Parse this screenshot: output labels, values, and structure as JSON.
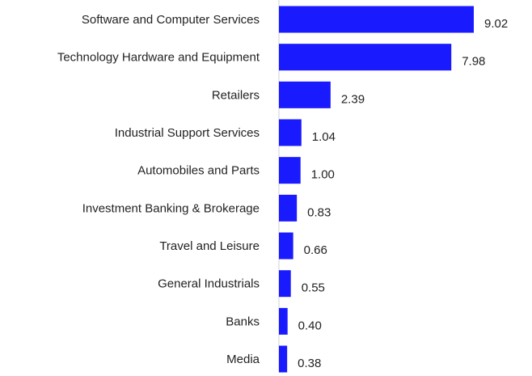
{
  "chart_data": {
    "type": "bar",
    "orientation": "horizontal",
    "categories": [
      "Software and Computer Services",
      "Technology Hardware and Equipment",
      "Retailers",
      "Industrial Support Services",
      "Automobiles and Parts",
      "Investment Banking & Brokerage",
      "Travel and Leisure",
      "General Industrials",
      "Banks",
      "Media"
    ],
    "values": [
      9.02,
      7.98,
      2.39,
      1.04,
      1.0,
      0.83,
      0.66,
      0.55,
      0.4,
      0.38
    ],
    "value_labels": [
      "9.02",
      "7.98",
      "2.39",
      "1.04",
      "1.00",
      "0.83",
      "0.66",
      "0.55",
      "0.40",
      "0.38"
    ],
    "title": "",
    "xlabel": "",
    "ylabel": "",
    "xlim": [
      0,
      9.02
    ],
    "grid": false,
    "legend": "none",
    "bar_color": "#1a1aff",
    "axis_color": "#d0d0d0"
  }
}
